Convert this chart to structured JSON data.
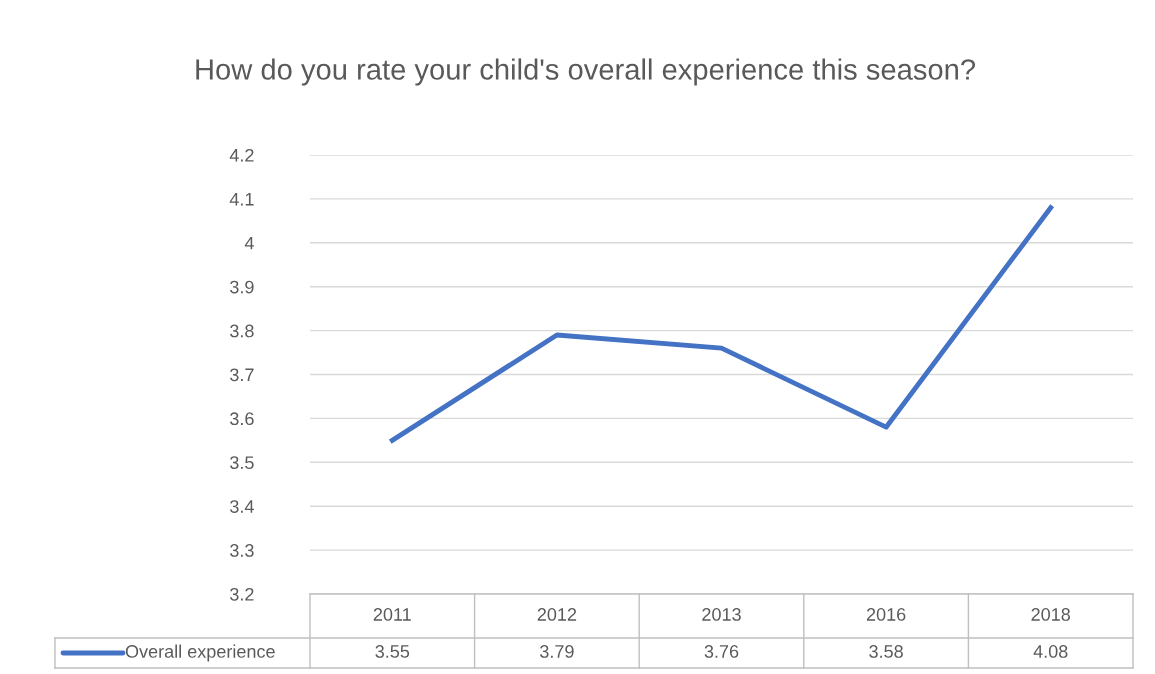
{
  "chart_data": {
    "type": "line",
    "title": "How do you rate your child's overall experience this season?",
    "categories": [
      "2011",
      "2012",
      "2013",
      "2016",
      "2018"
    ],
    "series": [
      {
        "name": "Overall experience",
        "color": "#4472c4",
        "values": [
          3.55,
          3.79,
          3.76,
          3.58,
          4.08
        ]
      }
    ],
    "ylim": [
      3.2,
      4.2
    ],
    "yticks": [
      3.2,
      3.3,
      3.4,
      3.5,
      3.6,
      3.7,
      3.8,
      3.9,
      4,
      4.1,
      4.2
    ],
    "grid": "y",
    "legend": "bottom",
    "data_labels": true,
    "marker": "none",
    "line_style": "solid"
  }
}
